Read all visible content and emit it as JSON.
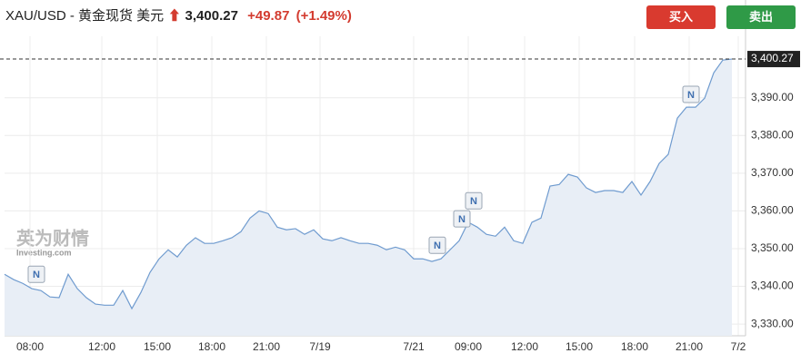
{
  "header": {
    "symbol": "XAU/USD - 黄金现货 美元",
    "price": "3,400.27",
    "change": "+49.87",
    "change_pct": "(+1.49%)",
    "buy": "买入",
    "sell": "卖出"
  },
  "watermark": {
    "brand": "英为财情",
    "site": "Investing.com"
  },
  "chart_data": {
    "type": "area",
    "color": "#6f9bcf",
    "fill": "#e8eef6",
    "grid": true,
    "values": [
      3343.2,
      3341.8,
      3340.8,
      3339.4,
      3338.9,
      3337.2,
      3337,
      3343.2,
      3339.4,
      3337,
      3335.3,
      3335,
      3335,
      3338.9,
      3334.1,
      3338.4,
      3343.7,
      3347.3,
      3349.7,
      3347.8,
      3350.9,
      3352.9,
      3351.4,
      3351.4,
      3352.1,
      3352.9,
      3354.5,
      3358.1,
      3360,
      3359.3,
      3355.7,
      3355,
      3355.3,
      3353.8,
      3355,
      3352.6,
      3352.1,
      3352.9,
      3352.1,
      3351.4,
      3351.4,
      3350.9,
      3349.7,
      3350.4,
      3349.7,
      3347.3,
      3347.3,
      3346.6,
      3347.3,
      3349.7,
      3352.1,
      3357,
      3355.7,
      3353.8,
      3353.3,
      3355.7,
      3352.1,
      3351.4,
      3357,
      3358.1,
      3366.6,
      3367,
      3369.7,
      3369,
      3366.1,
      3364.9,
      3365.4,
      3365.4,
      3364.9,
      3367.8,
      3364.2,
      3367.8,
      3372.6,
      3375,
      3384.6,
      3387.5,
      3387.5,
      3389.9,
      3396.6,
      3400,
      3400.27
    ],
    "xlim": [
      0,
      81.5
    ],
    "ylim": [
      3326.9,
      3406.3
    ],
    "xticks": [
      {
        "value": 2.8,
        "label": "08:00"
      },
      {
        "value": 10.7,
        "label": "12:00"
      },
      {
        "value": 16.8,
        "label": "15:00"
      },
      {
        "value": 22.8,
        "label": "18:00"
      },
      {
        "value": 28.8,
        "label": "21:00"
      },
      {
        "value": 34.7,
        "label": "7/19"
      },
      {
        "value": 45,
        "label": "7/21"
      },
      {
        "value": 51,
        "label": "09:00"
      },
      {
        "value": 57.2,
        "label": "12:00"
      },
      {
        "value": 63.2,
        "label": "15:00"
      },
      {
        "value": 69.3,
        "label": "18:00"
      },
      {
        "value": 75.3,
        "label": "21:00"
      },
      {
        "value": 80.7,
        "label": "7/2"
      }
    ],
    "yticks": [
      {
        "value": 3330,
        "label": "3,330.00"
      },
      {
        "value": 3340,
        "label": "3,340.00"
      },
      {
        "value": 3350,
        "label": "3,350.00"
      },
      {
        "value": 3360,
        "label": "3,360.00"
      },
      {
        "value": 3370,
        "label": "3,370.00"
      },
      {
        "value": 3380,
        "label": "3,380.00"
      },
      {
        "value": 3390,
        "label": "3,390.00"
      }
    ],
    "last_price": {
      "value": 3400.27,
      "label": "3,400.27"
    },
    "events": [
      {
        "x": 3.5,
        "y": 3343.2,
        "label": "N"
      },
      {
        "x": 47.6,
        "y": 3350.9,
        "label": "N"
      },
      {
        "x": 50.3,
        "y": 3357.9,
        "label": "N"
      },
      {
        "x": 51.6,
        "y": 3362.7,
        "label": "N"
      },
      {
        "x": 75.5,
        "y": 3390.9,
        "label": "N"
      }
    ]
  }
}
